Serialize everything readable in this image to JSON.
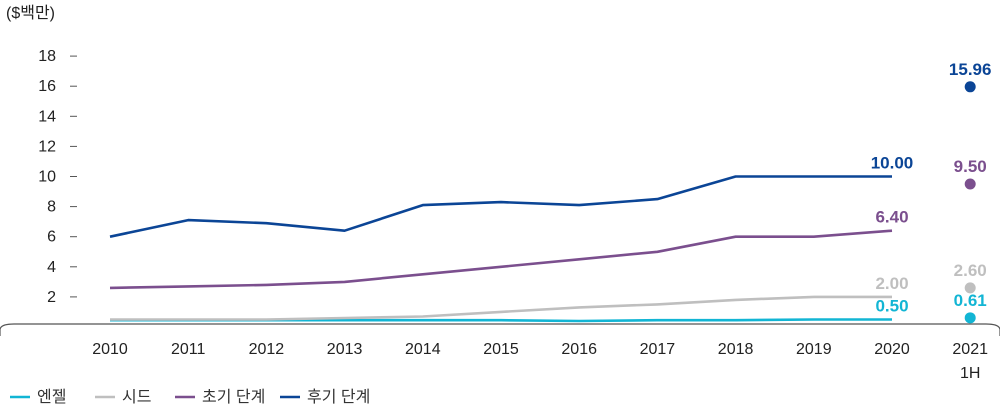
{
  "chart_data": {
    "type": "line",
    "unit_label": "($백만)",
    "ylim": [
      0,
      18
    ],
    "yticks": [
      2,
      4,
      6,
      8,
      10,
      12,
      14,
      16,
      18
    ],
    "categories": [
      "2010",
      "2011",
      "2012",
      "2013",
      "2014",
      "2015",
      "2016",
      "2017",
      "2018",
      "2019",
      "2020"
    ],
    "extra_category": {
      "line1": "2021",
      "line2": "1H"
    },
    "series": [
      {
        "name": "엔젤",
        "color": "#12b5d4",
        "values": [
          0.45,
          0.45,
          0.45,
          0.45,
          0.45,
          0.45,
          0.4,
          0.45,
          0.45,
          0.5,
          0.5
        ],
        "end_label": "0.50",
        "point_2021": 0.61,
        "point_label": "0.61"
      },
      {
        "name": "시드",
        "color": "#bfbfbf",
        "values": [
          0.5,
          0.5,
          0.5,
          0.6,
          0.7,
          1.0,
          1.3,
          1.5,
          1.8,
          2.0,
          2.0
        ],
        "end_label": "2.00",
        "point_2021": 2.6,
        "point_label": "2.60"
      },
      {
        "name": "초기 단계",
        "color": "#7b4f8e",
        "values": [
          2.6,
          2.7,
          2.8,
          3.0,
          3.5,
          4.0,
          4.5,
          5.0,
          6.0,
          6.0,
          6.4
        ],
        "end_label": "6.40",
        "point_2021": 9.5,
        "point_label": "9.50"
      },
      {
        "name": "후기 단계",
        "color": "#0b4596",
        "values": [
          6.0,
          7.1,
          6.9,
          6.4,
          8.1,
          8.3,
          8.1,
          8.5,
          10.0,
          10.0,
          10.0
        ],
        "end_label": "10.00",
        "point_2021": 15.96,
        "point_label": "15.96"
      }
    ]
  }
}
